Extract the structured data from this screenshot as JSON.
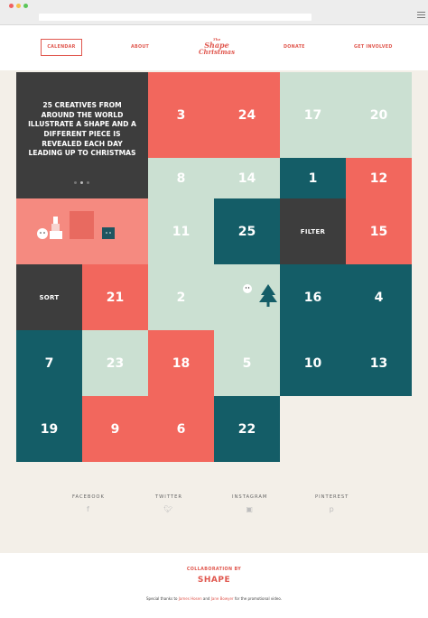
{
  "colors": {
    "coral": "#f2675d",
    "dark": "#3d3d3d",
    "mint": "#cbe0d2",
    "teal": "#145d67",
    "pink": "#f58a80",
    "cream": "#f3efe8"
  },
  "nav": {
    "calendar": "CALENDAR",
    "about": "ABOUT",
    "donate": "DONATE",
    "get_involved": "GET INVOLVED",
    "logo": {
      "line1": "The",
      "line2": "Shape",
      "line3": "Christmas"
    }
  },
  "intro": {
    "text": "25 CREATIVES FROM AROUND THE WORLD ILLUSTRATE A SHAPE AND A DIFFERENT PIECE IS REVEALED EACH DAY LEADING UP TO CHRISTMAS"
  },
  "grid": {
    "filter": "FILTER",
    "sort": "SORT",
    "cells": [
      {
        "label": "3",
        "color": "red"
      },
      {
        "label": "24",
        "color": "red"
      },
      {
        "label": "17",
        "color": "mint"
      },
      {
        "label": "20",
        "color": "mint"
      },
      {
        "label": "8",
        "color": "mint"
      },
      {
        "label": "14",
        "color": "mint"
      },
      {
        "label": "1",
        "color": "teal"
      },
      {
        "label": "12",
        "color": "red"
      },
      {
        "label": "11",
        "color": "mint"
      },
      {
        "label": "25",
        "color": "teal"
      },
      {
        "label": "15",
        "color": "red"
      },
      {
        "label": "21",
        "color": "red"
      },
      {
        "label": "2",
        "color": "mint"
      },
      {
        "label": "16",
        "color": "teal"
      },
      {
        "label": "4",
        "color": "teal"
      },
      {
        "label": "7",
        "color": "teal"
      },
      {
        "label": "23",
        "color": "mint"
      },
      {
        "label": "18",
        "color": "red"
      },
      {
        "label": "5",
        "color": "mint"
      },
      {
        "label": "10",
        "color": "teal"
      },
      {
        "label": "13",
        "color": "teal"
      },
      {
        "label": "19",
        "color": "teal"
      },
      {
        "label": "9",
        "color": "red"
      },
      {
        "label": "6",
        "color": "red"
      },
      {
        "label": "22",
        "color": "teal"
      }
    ]
  },
  "social": [
    {
      "label": "FACEBOOK",
      "icon": "facebook-icon"
    },
    {
      "label": "TWITTER",
      "icon": "twitter-icon"
    },
    {
      "label": "INSTAGRAM",
      "icon": "instagram-icon"
    },
    {
      "label": "PINTEREST",
      "icon": "pinterest-icon"
    }
  ],
  "footer": {
    "collab": "COLLABORATION BY",
    "brand": "SHAPE",
    "thanks_prefix": "Special thanks to",
    "name1": "James Hosen",
    "and": "and",
    "name2": "Jane Bowyer",
    "thanks_suffix": "for the promotional video."
  }
}
